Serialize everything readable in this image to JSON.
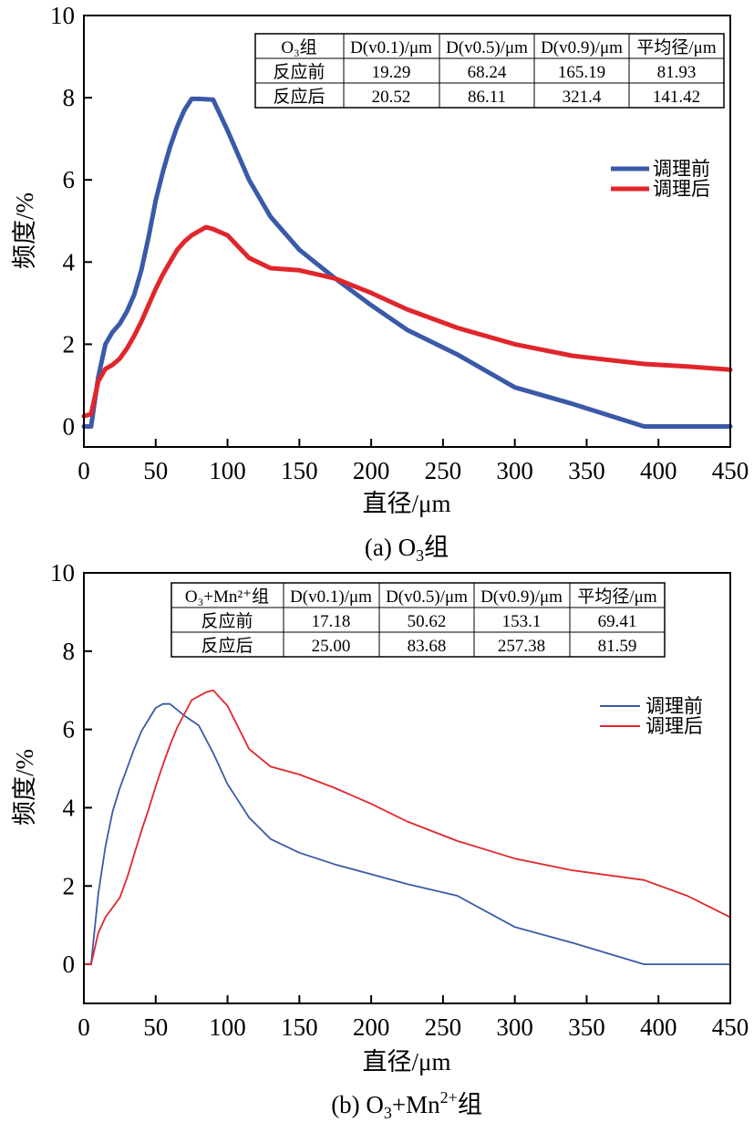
{
  "chart_data": [
    {
      "type": "line",
      "title": "(a) O₃组",
      "caption_prefix": "(a) O",
      "caption_sub": "3",
      "caption_suffix": "组",
      "xlabel": "直径/μm",
      "ylabel": "频度/%",
      "xlim": [
        0,
        450
      ],
      "ylim": [
        -0.5,
        10
      ],
      "xticks": [
        0,
        50,
        100,
        150,
        200,
        250,
        300,
        350,
        400,
        450
      ],
      "yticks": [
        0,
        2,
        4,
        6,
        8,
        10
      ],
      "legend_position": "right",
      "series": [
        {
          "name": "调理前",
          "color": "#3a5aa8",
          "x": [
            0,
            5,
            10,
            15,
            20,
            25,
            30,
            35,
            40,
            45,
            50,
            55,
            60,
            65,
            70,
            75,
            80,
            90,
            100,
            115,
            130,
            150,
            175,
            200,
            225,
            260,
            300,
            340,
            390,
            420,
            450
          ],
          "y": [
            0,
            0,
            1.2,
            2.0,
            2.3,
            2.5,
            2.8,
            3.2,
            3.8,
            4.6,
            5.5,
            6.2,
            6.8,
            7.3,
            7.7,
            7.97,
            7.97,
            7.95,
            7.2,
            6.0,
            5.1,
            4.3,
            3.6,
            2.95,
            2.35,
            1.75,
            0.95,
            0.55,
            0.0,
            0.0,
            0.0
          ]
        },
        {
          "name": "调理后",
          "color": "#e0262b",
          "x": [
            0,
            5,
            10,
            15,
            20,
            25,
            30,
            35,
            40,
            45,
            50,
            55,
            60,
            65,
            70,
            75,
            80,
            85,
            90,
            100,
            115,
            130,
            150,
            175,
            200,
            225,
            260,
            300,
            340,
            390,
            420,
            450
          ],
          "y": [
            0.25,
            0.3,
            1.1,
            1.4,
            1.5,
            1.65,
            1.9,
            2.2,
            2.55,
            2.95,
            3.35,
            3.7,
            4.0,
            4.3,
            4.5,
            4.65,
            4.75,
            4.85,
            4.8,
            4.65,
            4.1,
            3.85,
            3.8,
            3.6,
            3.25,
            2.85,
            2.4,
            2.0,
            1.72,
            1.52,
            1.46,
            1.38
          ]
        }
      ],
      "table": {
        "header": [
          "O₃组",
          "D(v0.1)/μm",
          "D(v0.5)/μm",
          "D(v0.9)/μm",
          "平均径/μm"
        ],
        "rows": [
          [
            "反应前",
            "19.29",
            "68.24",
            "165.19",
            "81.93"
          ],
          [
            "反应后",
            "20.52",
            "86.11",
            "321.4",
            "141.42"
          ]
        ]
      }
    },
    {
      "type": "line",
      "title": "(b) O₃+Mn²⁺组",
      "caption_prefix": "(b) O",
      "caption_sub": "3",
      "caption_mid": "+Mn",
      "caption_sup": "2+",
      "caption_suffix": "组",
      "xlabel": "直径/μm",
      "ylabel": "频度/%",
      "xlim": [
        0,
        450
      ],
      "ylim": [
        -1,
        10
      ],
      "xticks": [
        0,
        50,
        100,
        150,
        200,
        250,
        300,
        350,
        400,
        450
      ],
      "yticks": [
        0,
        2,
        4,
        6,
        8,
        10
      ],
      "legend_position": "right",
      "series": [
        {
          "name": "调理前",
          "color": "#3a5aa8",
          "x": [
            0,
            5,
            10,
            15,
            20,
            25,
            30,
            35,
            40,
            45,
            50,
            55,
            60,
            65,
            70,
            80,
            90,
            100,
            115,
            130,
            150,
            175,
            200,
            225,
            260,
            300,
            340,
            390,
            420,
            450
          ],
          "y": [
            0,
            0,
            1.8,
            3.0,
            3.9,
            4.5,
            5.0,
            5.5,
            5.95,
            6.25,
            6.55,
            6.65,
            6.65,
            6.5,
            6.35,
            6.1,
            5.4,
            4.6,
            3.75,
            3.2,
            2.85,
            2.55,
            2.3,
            2.05,
            1.75,
            0.95,
            0.55,
            0.0,
            0.0,
            0.0
          ]
        },
        {
          "name": "调理后",
          "color": "#e0262b",
          "x": [
            0,
            5,
            10,
            15,
            20,
            25,
            30,
            35,
            40,
            45,
            50,
            55,
            60,
            65,
            70,
            75,
            80,
            85,
            90,
            100,
            115,
            130,
            150,
            175,
            200,
            225,
            260,
            300,
            340,
            390,
            420,
            450
          ],
          "y": [
            0,
            0,
            0.8,
            1.2,
            1.45,
            1.7,
            2.2,
            2.8,
            3.4,
            3.95,
            4.55,
            5.1,
            5.6,
            6.05,
            6.4,
            6.75,
            6.85,
            6.95,
            7.0,
            6.6,
            5.5,
            5.05,
            4.85,
            4.5,
            4.1,
            3.65,
            3.15,
            2.7,
            2.4,
            2.15,
            1.75,
            1.2
          ]
        }
      ],
      "table": {
        "header": [
          "O₃+Mn²⁺组",
          "D(v0.1)/μm",
          "D(v0.5)/μm",
          "D(v0.9)/μm",
          "平均径/μm"
        ],
        "rows": [
          [
            "反应前",
            "17.18",
            "50.62",
            "153.1",
            "69.41"
          ],
          [
            "反应后",
            "25.00",
            "83.68",
            "257.38",
            "81.59"
          ]
        ]
      }
    }
  ]
}
